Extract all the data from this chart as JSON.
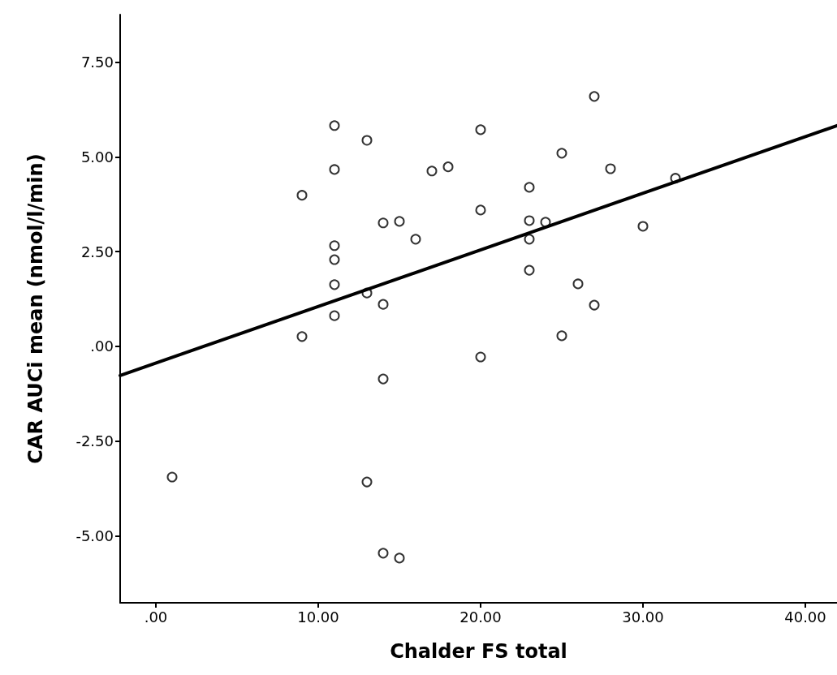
{
  "chart_data": {
    "type": "scatter",
    "xlabel": "Chalder FS total",
    "ylabel": "CAR AUCi mean (nmol/l/min)",
    "xlim": [
      -2.2,
      41.95
    ],
    "ylim": [
      -6.77,
      8.76
    ],
    "xticks": [
      {
        "value": 0,
        "label": ".00"
      },
      {
        "value": 10,
        "label": "10.00"
      },
      {
        "value": 20,
        "label": "20.00"
      },
      {
        "value": 30,
        "label": "30.00"
      },
      {
        "value": 40,
        "label": "40.00"
      }
    ],
    "yticks": [
      {
        "value": -5,
        "label": "-5.00"
      },
      {
        "value": -2.5,
        "label": "-2.50"
      },
      {
        "value": 0,
        "label": ".00"
      },
      {
        "value": 2.5,
        "label": "2.50"
      },
      {
        "value": 5,
        "label": "5.00"
      },
      {
        "value": 7.5,
        "label": "7.50"
      }
    ],
    "grid": false,
    "marker": "circle",
    "series": [
      {
        "color": "#000000",
        "x": [
          9,
          9,
          11,
          11,
          11,
          11,
          11,
          11,
          13,
          13,
          13,
          14,
          14,
          14,
          14,
          15,
          15,
          16,
          17,
          18,
          20,
          20,
          20,
          23,
          23,
          23,
          23,
          24,
          25,
          25,
          26,
          27,
          27,
          28,
          30,
          32,
          1
        ],
        "values": [
          3.99,
          0.26,
          5.83,
          4.67,
          2.66,
          2.29,
          1.63,
          0.81,
          5.44,
          1.41,
          -3.58,
          3.26,
          1.11,
          -0.86,
          -5.46,
          3.3,
          -5.59,
          2.83,
          4.63,
          4.74,
          5.72,
          3.6,
          -0.28,
          4.2,
          3.32,
          2.83,
          2.01,
          3.28,
          5.1,
          0.28,
          1.65,
          6.6,
          1.09,
          4.69,
          3.17,
          4.44,
          -3.45
        ]
      },
      {
        "type": "line",
        "color": "#000000",
        "marker": "none",
        "line_style": "solid",
        "x": [
          -2.2,
          41.95
        ],
        "values": [
          -0.77,
          5.83
        ]
      }
    ]
  }
}
